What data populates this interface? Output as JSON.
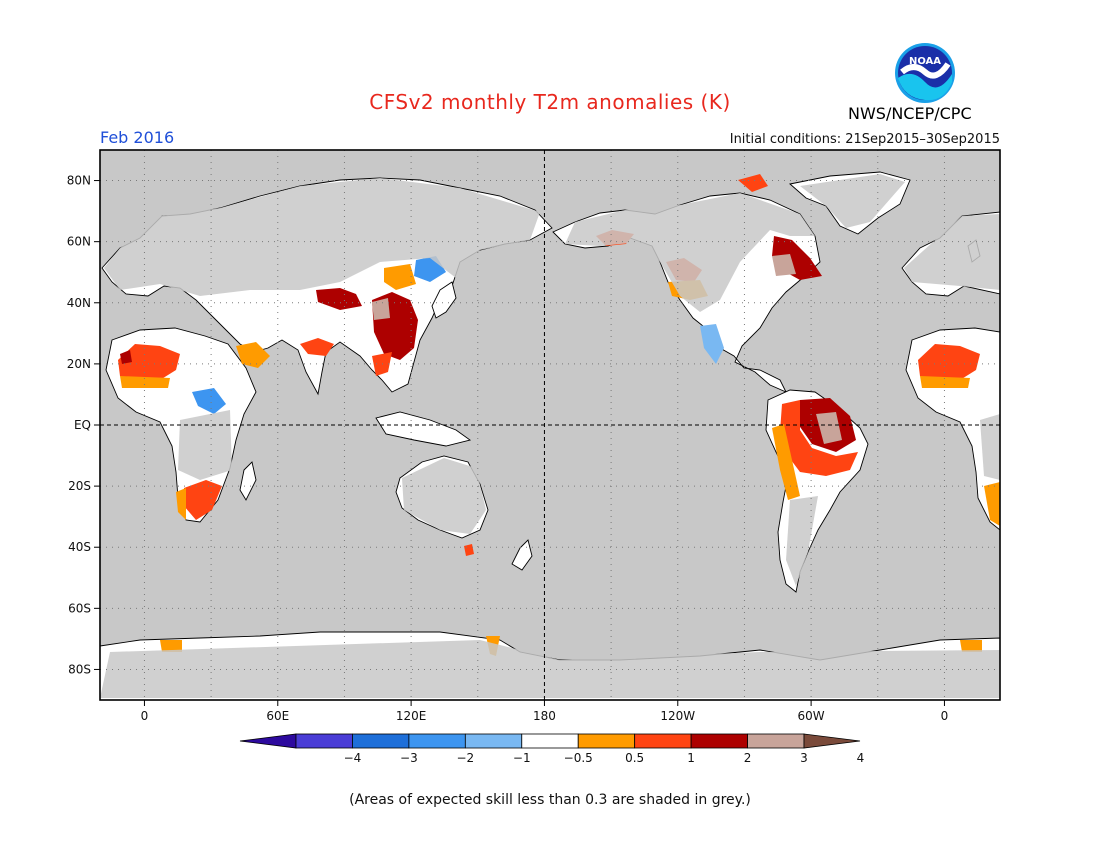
{
  "title": "CFSv2 monthly T2m anomalies (K)",
  "month_label": "Feb 2016",
  "agency": "NWS/NCEP/CPC",
  "logo_text": "NOAA",
  "initial_conditions": "Initial conditions: 21Sep2015–30Sep2015",
  "footnote": "(Areas of expected skill less than 0.3 are shaded in grey.)",
  "map": {
    "lat_labels": [
      "80N",
      "60N",
      "40N",
      "20N",
      "EQ",
      "20S",
      "40S",
      "60S",
      "80S"
    ],
    "lat_values": [
      80,
      60,
      40,
      20,
      0,
      -20,
      -40,
      -60,
      -80
    ],
    "lon_labels": [
      "0",
      "60E",
      "120E",
      "180",
      "120W",
      "60W",
      "0"
    ],
    "lon_values": [
      0,
      60,
      120,
      180,
      240,
      300,
      360
    ],
    "lon_range": [
      -20,
      385
    ],
    "lat_range": [
      -90,
      90
    ],
    "ocean_color": "#c8c8c8"
  },
  "colorbar": {
    "labels": [
      "−4",
      "−3",
      "−2",
      "−1",
      "−0.5",
      "0.5",
      "1",
      "2",
      "3",
      "4"
    ],
    "colors": [
      "#2d0a9e",
      "#4a3dd6",
      "#1e6fd9",
      "#3d95f0",
      "#79b8f2",
      "#ffffff",
      "#ff9b00",
      "#ff4412",
      "#ad0000",
      "#c8a49a",
      "#7a4a3a"
    ]
  }
}
